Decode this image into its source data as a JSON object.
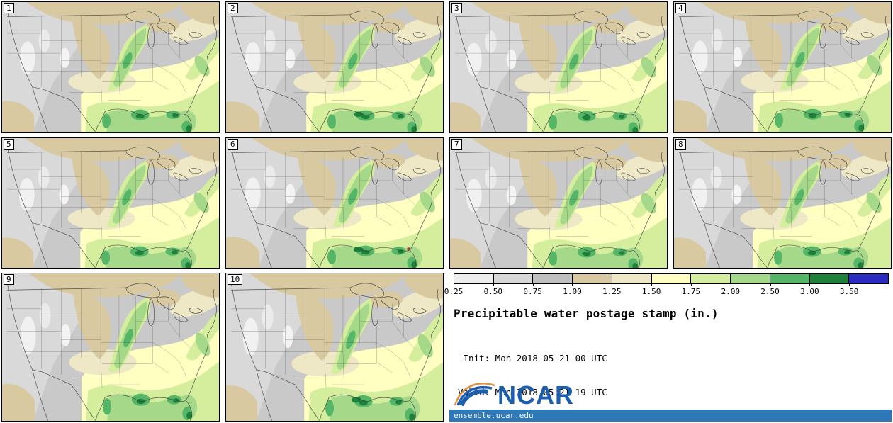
{
  "panels": [
    {
      "label": "1"
    },
    {
      "label": "2"
    },
    {
      "label": "3"
    },
    {
      "label": "4"
    },
    {
      "label": "5"
    },
    {
      "label": "6"
    },
    {
      "label": "7"
    },
    {
      "label": "8"
    },
    {
      "label": "9"
    },
    {
      "label": "10"
    }
  ],
  "colorbar": {
    "tick_labels": [
      "0.25",
      "0.50",
      "0.75",
      "1.00",
      "1.25",
      "1.50",
      "1.75",
      "2.00",
      "2.50",
      "3.00",
      "3.50"
    ],
    "segment_colors": [
      "#ededed",
      "#d7d7d7",
      "#c0c0c0",
      "#d8c9a0",
      "#eee8c6",
      "#ffffc2",
      "#d4ee9e",
      "#a6d88a",
      "#56b667",
      "#1e8139",
      "#2b2bbf"
    ]
  },
  "legend": {
    "title": "Precipitable water postage stamp (in.)",
    "init_line": " Init: Mon 2018-05-21 00 UTC",
    "valid_line": "Valid: Mon 2018-05-21 19 UTC"
  },
  "branding": {
    "logo_text": "NCAR",
    "url": "ensemble.ucar.edu",
    "logo_blue": "#1d5fae",
    "logo_orange": "#e08f3c",
    "strip_blue": "#2e77b8"
  },
  "chart_data": {
    "type": "heatmap",
    "title": "Precipitable water postage stamp (in.)",
    "subtitle_init": "Init: Mon 2018-05-21 00 UTC",
    "subtitle_valid": "Valid: Mon 2018-05-21 19 UTC",
    "variable": "Precipitable water (in.)",
    "region": "Continental United States",
    "ensemble_members": [
      "1",
      "2",
      "3",
      "4",
      "5",
      "6",
      "7",
      "8",
      "9",
      "10"
    ],
    "layout": "10 small-multiple maps, 4 columns x 3 rows, colorbar legend bottom-right",
    "colorbar_ticks_in": [
      0.25,
      0.5,
      0.75,
      1.0,
      1.25,
      1.5,
      1.75,
      2.0,
      2.5,
      3.0,
      3.5
    ],
    "colorbar_colors": [
      "#ededed",
      "#d7d7d7",
      "#c0c0c0",
      "#d8c9a0",
      "#eee8c6",
      "#ffffc2",
      "#d4ee9e",
      "#a6d88a",
      "#56b667",
      "#1e8139",
      "#2b2bbf"
    ],
    "pattern_summary": "Low PW (gray/white) over western US and Rockies; 1.0-1.5 in (tan/cream) over northern plains and Great Lakes; 1.5-2.0 in (yellow-green) over southeast and a SW-NE band from Texas to the Ohio Valley; 2.0-3.0+ in (greens) along Gulf Coast, Florida and the Carolinas coast in all 10 members",
    "source": "ensemble.ucar.edu"
  }
}
